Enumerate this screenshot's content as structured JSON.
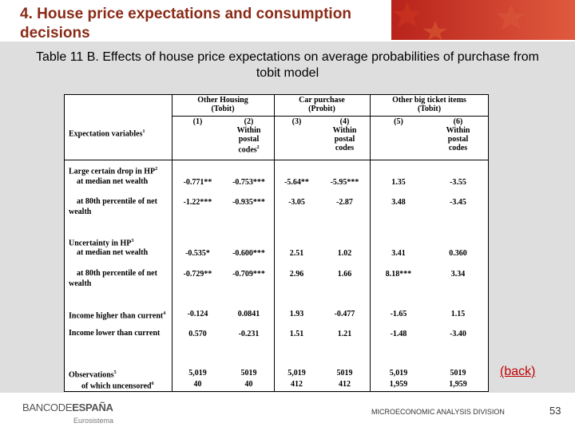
{
  "header": {
    "title": "4. House price expectations and consumption decisions",
    "subtitle": "Table 11 B. Effects of house price expectations on average probabilities of purchase from tobit model"
  },
  "table": {
    "stub_header": {
      "text": "Expectation variables",
      "sup": "1"
    },
    "groups": [
      {
        "name": "Other Housing",
        "model": "(Tobit)"
      },
      {
        "name": "Car purchase",
        "model": "(Probit)"
      },
      {
        "name": "Other big ticket items",
        "model": "(Tobit)"
      }
    ],
    "columns": [
      {
        "number": "(1)"
      },
      {
        "number": "(2)",
        "note": "Within postal codes",
        "sup": "2"
      },
      {
        "number": "(3)"
      },
      {
        "number": "(4)",
        "note": "Within postal codes"
      },
      {
        "number": "(5)"
      },
      {
        "number": "(6)",
        "note": "Within postal codes"
      }
    ],
    "rows": [
      {
        "label": "Large certain drop in HP",
        "sup": "2"
      },
      {
        "label": "at median net wealth",
        "values": [
          "-0.771**",
          "-0.753***",
          "-5.64**",
          "-5.95***",
          "1.35",
          "-3.55"
        ]
      },
      {
        "label": "at 80th percentile of net wealth",
        "values": [
          "-1.22***",
          "-0.935***",
          "-3.05",
          "-2.87",
          "3.48",
          "-3.45"
        ]
      },
      {
        "label": "Uncertainty in HP",
        "sup": "3"
      },
      {
        "label": "at median net wealth",
        "values": [
          "-0.535*",
          "-0.600***",
          "2.51",
          "1.02",
          "3.41",
          "0.360"
        ]
      },
      {
        "label": "at 80th percentile of net wealth",
        "values": [
          "-0.729**",
          "-0.709***",
          "2.96",
          "1.66",
          "8.18***",
          "3.34"
        ]
      },
      {
        "label": "Income higher than current",
        "sup": "4",
        "values": [
          "-0.124",
          "0.0841",
          "1.93",
          "-0.477",
          "-1.65",
          "1.15"
        ]
      },
      {
        "label": "Income lower than current",
        "values": [
          "0.570",
          "-0.231",
          "1.51",
          "1.21",
          "-1.48",
          "-3.40"
        ]
      },
      {
        "label": "Observations",
        "sup": "5",
        "values": [
          "5,019",
          "5019",
          "5,019",
          "5019",
          "5,019",
          "5019"
        ]
      },
      {
        "label": "of which uncensored",
        "sup": "6",
        "values": [
          "40",
          "40",
          "412",
          "412",
          "1,959",
          "1,959"
        ]
      }
    ]
  },
  "back": "(back)",
  "footer": {
    "logo_light": "BANCODE",
    "logo_bold": "ESPAÑA",
    "logo_sub": "Eurosistema",
    "division": "MICROECONOMIC ANALYSIS DIVISION",
    "page": "53"
  }
}
